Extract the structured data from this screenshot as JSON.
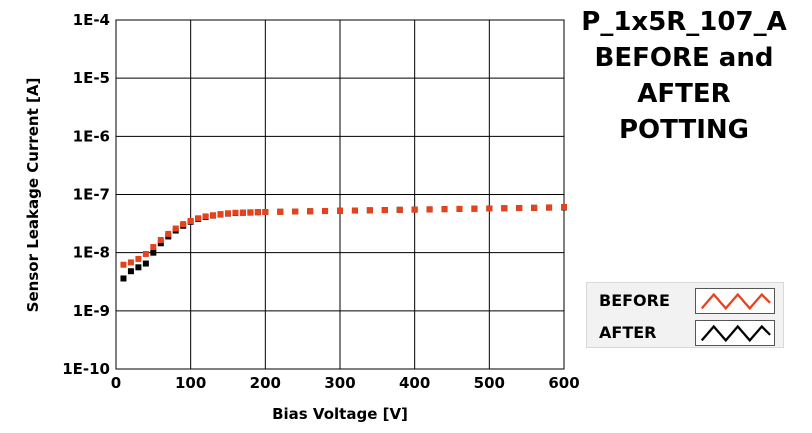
{
  "title_lines": [
    "P_1x5R_107_A",
    "BEFORE and",
    "AFTER",
    "POTTING"
  ],
  "legend": [
    {
      "label": "BEFORE",
      "color": "#e8421c"
    },
    {
      "label": "AFTER",
      "color": "#000000"
    }
  ],
  "chart_data": {
    "type": "scatter",
    "title": "P_1x5R_107_A BEFORE and AFTER POTTING",
    "xlabel": "Bias Voltage [V]",
    "ylabel": "Sensor Leakage Current [A]",
    "xlim": [
      0,
      600
    ],
    "ylim": [
      1e-10,
      0.0001
    ],
    "yscale": "log",
    "grid": true,
    "legend_position": "bottom-right",
    "x_ticks": [
      0,
      100,
      200,
      300,
      400,
      500,
      600
    ],
    "x_tick_labels": [
      "0",
      "100",
      "200",
      "300",
      "400",
      "500",
      "600"
    ],
    "y_ticks": [
      1e-10,
      1e-09,
      1e-08,
      1e-07,
      1e-06,
      1e-05,
      0.0001
    ],
    "y_tick_labels": [
      "1E-10",
      "1E-9",
      "1E-8",
      "1E-7",
      "1E-6",
      "1E-5",
      "1E-4"
    ],
    "x": [
      10,
      20,
      30,
      40,
      50,
      60,
      70,
      80,
      90,
      100,
      110,
      120,
      130,
      140,
      150,
      160,
      170,
      180,
      190,
      200,
      220,
      240,
      260,
      280,
      300,
      320,
      340,
      360,
      380,
      400,
      420,
      440,
      460,
      480,
      500,
      520,
      540,
      560,
      580,
      600
    ],
    "series": [
      {
        "name": "BEFORE",
        "color": "#e8421c",
        "values": [
          6.2e-09,
          6.8e-09,
          7.8e-09,
          9.5e-09,
          1.25e-08,
          1.65e-08,
          2.1e-08,
          2.6e-08,
          3.1e-08,
          3.5e-08,
          3.9e-08,
          4.2e-08,
          4.4e-08,
          4.6e-08,
          4.75e-08,
          4.85e-08,
          4.9e-08,
          4.95e-08,
          5e-08,
          5e-08,
          5.05e-08,
          5.1e-08,
          5.15e-08,
          5.2e-08,
          5.25e-08,
          5.3e-08,
          5.35e-08,
          5.4e-08,
          5.45e-08,
          5.5e-08,
          5.55e-08,
          5.6e-08,
          5.65e-08,
          5.7e-08,
          5.75e-08,
          5.8e-08,
          5.85e-08,
          5.9e-08,
          6e-08,
          6.1e-08
        ]
      },
      {
        "name": "AFTER",
        "color": "#000000",
        "values": [
          3.6e-09,
          4.8e-09,
          5.6e-09,
          6.5e-09,
          1e-08,
          1.45e-08,
          1.9e-08,
          2.4e-08,
          2.9e-08,
          3.4e-08,
          3.8e-08,
          4.1e-08,
          4.35e-08,
          4.55e-08,
          4.7e-08,
          4.8e-08,
          4.85e-08,
          4.9e-08,
          4.95e-08,
          5e-08,
          5.05e-08,
          5.1e-08,
          5.15e-08,
          5.2e-08,
          5.25e-08,
          5.3e-08,
          5.35e-08,
          5.4e-08,
          5.45e-08,
          5.5e-08,
          5.55e-08,
          5.6e-08,
          5.65e-08,
          5.7e-08,
          5.75e-08,
          5.8e-08,
          5.85e-08,
          5.9e-08,
          5.95e-08,
          6e-08
        ]
      }
    ]
  }
}
